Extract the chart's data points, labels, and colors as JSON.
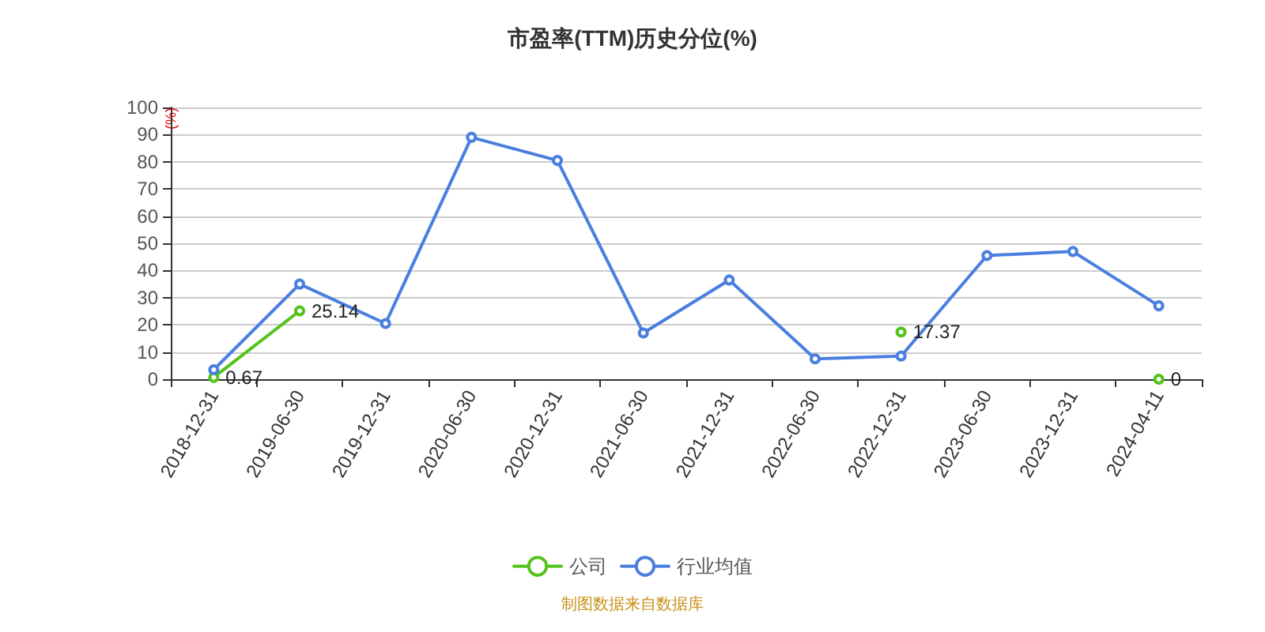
{
  "chart_data": {
    "type": "line",
    "title": "市盈率(TTM)历史分位(%)",
    "ylabel": "(%)",
    "categories": [
      "2018-12-31",
      "2019-06-30",
      "2019-12-31",
      "2020-06-30",
      "2020-12-31",
      "2021-06-30",
      "2021-12-31",
      "2022-06-30",
      "2022-12-31",
      "2023-06-30",
      "2023-12-31",
      "2024-04-11"
    ],
    "series": [
      {
        "name": "公司",
        "color": "#52c41a",
        "values": [
          0.67,
          25.14,
          null,
          null,
          null,
          null,
          null,
          null,
          17.37,
          null,
          null,
          0
        ],
        "value_labels": [
          "0.67",
          "25.14",
          null,
          null,
          null,
          null,
          null,
          null,
          "17.37",
          null,
          null,
          "0"
        ]
      },
      {
        "name": "行业均值",
        "color": "#4a7fe0",
        "values": [
          3.5,
          35,
          20.5,
          89,
          80.5,
          17,
          36.5,
          7.5,
          8.5,
          45.5,
          47,
          27
        ]
      }
    ],
    "ylim": [
      0,
      100
    ],
    "yticks": [
      0,
      10,
      20,
      30,
      40,
      50,
      60,
      70,
      80,
      90,
      100
    ],
    "grid": "y",
    "legend": "bottom",
    "marker": "circle",
    "line_style": "solid",
    "annotations": [
      "制图数据来自数据库"
    ]
  }
}
